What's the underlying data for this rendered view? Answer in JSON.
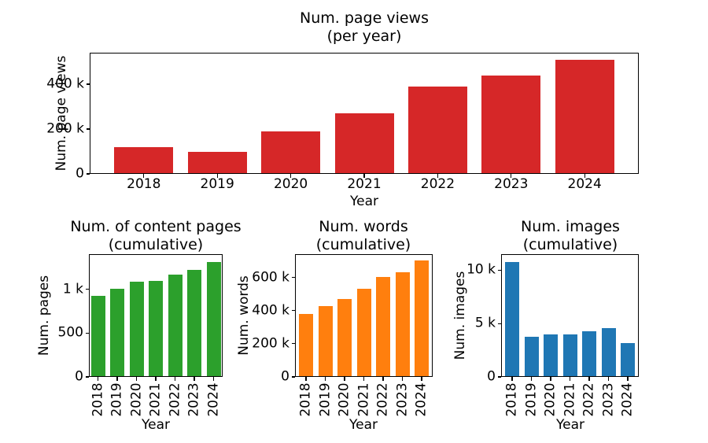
{
  "figure": {
    "background": "#ffffff",
    "text_color": "#000000"
  },
  "chart_data": [
    {
      "type": "bar",
      "title": "Num. page views",
      "subtitle": "(per year)",
      "xlabel": "Year",
      "ylabel": "Num. page views",
      "categories": [
        "2018",
        "2019",
        "2020",
        "2021",
        "2022",
        "2023",
        "2024"
      ],
      "values": [
        118000,
        100000,
        190000,
        270000,
        388000,
        440000,
        510000
      ],
      "bar_color": "#d62728",
      "ylim": [
        0,
        540000
      ],
      "yticks": [
        {
          "value": 0,
          "label": "0"
        },
        {
          "value": 200000,
          "label": "200 k"
        },
        {
          "value": 400000,
          "label": "400 k"
        }
      ],
      "grid": false,
      "legend": "none",
      "xtick_rotation": 0
    },
    {
      "type": "bar",
      "title": "Num. of content pages",
      "subtitle": "(cumulative)",
      "xlabel": "Year",
      "ylabel": "Num. pages",
      "categories": [
        "2018",
        "2019",
        "2020",
        "2021",
        "2022",
        "2023",
        "2024"
      ],
      "values": [
        925,
        1005,
        1085,
        1095,
        1165,
        1220,
        1310
      ],
      "bar_color": "#2ca02c",
      "ylim": [
        0,
        1400
      ],
      "yticks": [
        {
          "value": 0,
          "label": "0"
        },
        {
          "value": 500,
          "label": "500"
        },
        {
          "value": 1000,
          "label": "1 k"
        }
      ],
      "grid": false,
      "legend": "none",
      "xtick_rotation": 90
    },
    {
      "type": "bar",
      "title": "Num. words",
      "subtitle": "(cumulative)",
      "xlabel": "Year",
      "ylabel": "Num. words",
      "categories": [
        "2018",
        "2019",
        "2020",
        "2021",
        "2022",
        "2023",
        "2024"
      ],
      "values": [
        380000,
        427000,
        470000,
        533000,
        605000,
        633000,
        700000
      ],
      "bar_color": "#ff7f0e",
      "ylim": [
        0,
        740000
      ],
      "yticks": [
        {
          "value": 0,
          "label": "0"
        },
        {
          "value": 200000,
          "label": "200 k"
        },
        {
          "value": 400000,
          "label": "400 k"
        },
        {
          "value": 600000,
          "label": "600 k"
        }
      ],
      "grid": false,
      "legend": "none",
      "xtick_rotation": 90
    },
    {
      "type": "bar",
      "title": "Num. images",
      "subtitle": "(cumulative)",
      "xlabel": "Year",
      "ylabel": "Num. images",
      "categories": [
        "2018",
        "2019",
        "2020",
        "2021",
        "2022",
        "2023",
        "2024"
      ],
      "values": [
        10750,
        3800,
        3950,
        3950,
        4300,
        4550,
        3200
      ],
      "bar_color": "#1f77b4",
      "ylim": [
        0,
        11500
      ],
      "yticks": [
        {
          "value": 0,
          "label": "0"
        },
        {
          "value": 5000,
          "label": "5 k"
        },
        {
          "value": 10000,
          "label": "10 k"
        }
      ],
      "grid": false,
      "legend": "none",
      "xtick_rotation": 90
    }
  ]
}
